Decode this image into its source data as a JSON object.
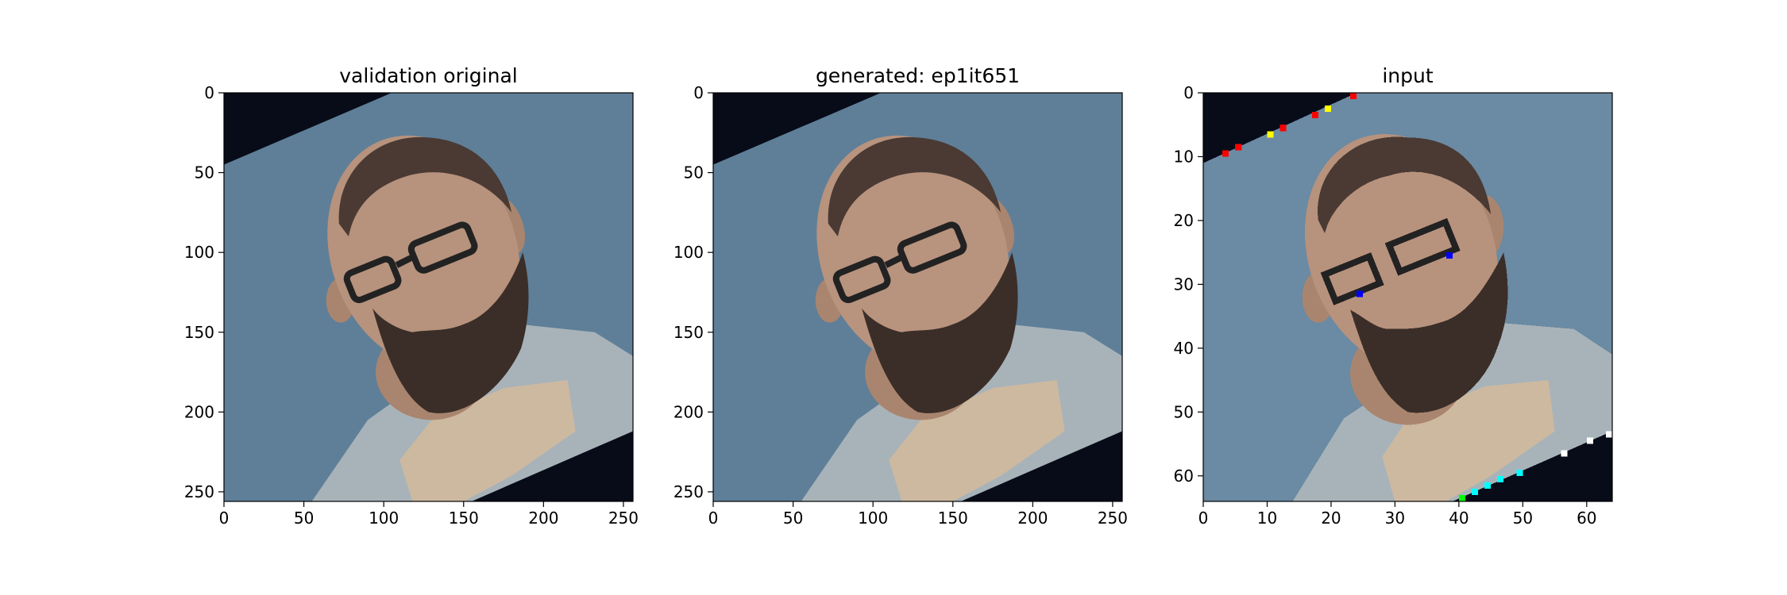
{
  "chart_data": [
    {
      "type": "image",
      "title": "validation original",
      "xlim": [
        0,
        256
      ],
      "ylim": [
        256,
        0
      ],
      "x_ticks": [
        0,
        50,
        100,
        150,
        200,
        250
      ],
      "y_ticks": [
        0,
        50,
        100,
        150,
        200,
        250
      ],
      "grid": false
    },
    {
      "type": "image",
      "title": "generated: ep1it651",
      "xlim": [
        0,
        256
      ],
      "ylim": [
        256,
        0
      ],
      "x_ticks": [
        0,
        50,
        100,
        150,
        200,
        250
      ],
      "y_ticks": [
        0,
        50,
        100,
        150,
        200,
        250
      ],
      "grid": false
    },
    {
      "type": "image",
      "title": "input",
      "xlim": [
        0,
        64
      ],
      "ylim": [
        64,
        0
      ],
      "x_ticks": [
        0,
        10,
        20,
        30,
        40,
        50,
        60
      ],
      "y_ticks": [
        0,
        10,
        20,
        30,
        40,
        50,
        60
      ],
      "grid": false
    }
  ],
  "colors": {
    "background_wall": "#5f7f98",
    "corner_fill": "#080c18",
    "skin": "#b7927d",
    "beard": "#3b2e28",
    "shirt": "#a8b3b9",
    "undershirt": "#cdb9a0",
    "glasses": "#222222",
    "landmark_red": "#ff0000",
    "landmark_yellow": "#ffff00",
    "landmark_blue": "#0000ff",
    "landmark_cyan": "#00ffff",
    "landmark_white": "#ffffff",
    "landmark_green": "#00ff00"
  }
}
